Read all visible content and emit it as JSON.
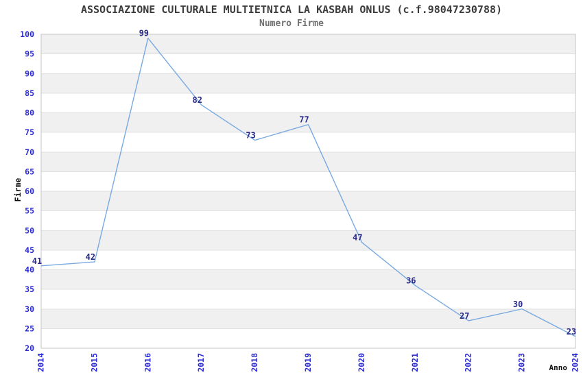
{
  "chart_data": {
    "type": "line",
    "title": "ASSOCIAZIONE CULTURALE MULTIETNICA LA KASBAH ONLUS (c.f.98047230788)",
    "subtitle": "Numero Firme",
    "xlabel": "Anno",
    "ylabel": "Firme",
    "x": [
      2014,
      2015,
      2016,
      2017,
      2018,
      2019,
      2020,
      2021,
      2022,
      2023,
      2024
    ],
    "values": [
      41,
      42,
      99,
      82,
      73,
      77,
      47,
      36,
      27,
      30,
      23
    ],
    "xlim": [
      2014,
      2024
    ],
    "ylim": [
      20,
      100
    ],
    "ytick_step": 5,
    "xtick_labels": [
      "2014",
      "2015",
      "2016",
      "2017",
      "2018",
      "2019",
      "2020",
      "2021",
      "2022",
      "2023",
      "2024"
    ],
    "ytick_labels": [
      "20",
      "25",
      "30",
      "35",
      "40",
      "45",
      "50",
      "55",
      "60",
      "65",
      "70",
      "75",
      "80",
      "85",
      "90",
      "95",
      "100"
    ],
    "point_labels": [
      "41",
      "42",
      "99",
      "82",
      "73",
      "77",
      "47",
      "36",
      "27",
      "30",
      "23"
    ],
    "grid": "alternating-horizontal-bands",
    "legend": "none",
    "markers": "none",
    "colors": {
      "line": "#79A9E0",
      "tick_label": "#2B2BD4",
      "point_label": "#2A2A8C",
      "band": "#F0F0F0",
      "band_alt": "#FFFFFF",
      "grid_line": "#E0E0E0",
      "plot_border": "#C4C4C4",
      "title": "#3C3C3C",
      "subtitle": "#707070",
      "axis_title": "#111111",
      "background": "#FFFFFF"
    }
  }
}
